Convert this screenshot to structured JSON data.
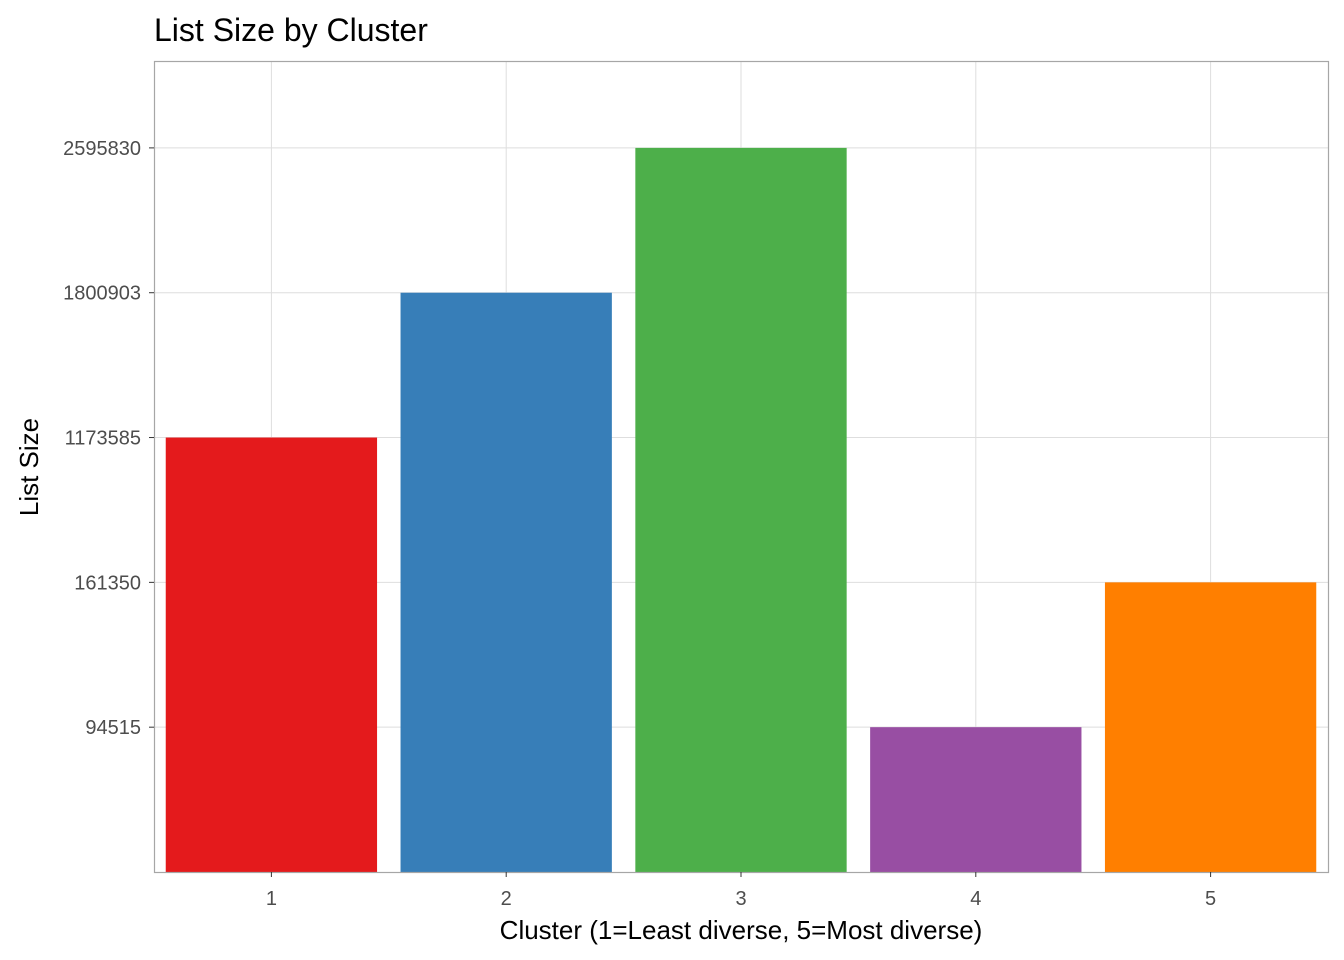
{
  "chart_data": {
    "type": "bar",
    "title": "List Size by Cluster",
    "xlabel": "Cluster (1=Least diverse, 5=Most diverse)",
    "ylabel": "List Size",
    "categories": [
      "1",
      "2",
      "3",
      "4",
      "5"
    ],
    "values": [
      1173585,
      1800903,
      2595830,
      94515,
      161350
    ],
    "colors": [
      "#e41a1c",
      "#377eb8",
      "#4daf4a",
      "#984ea3",
      "#ff7f00"
    ],
    "y_scale": "discrete (ticks are the observed values, evenly spaced in rank order)",
    "y_ticks": [
      "94515",
      "161350",
      "1173585",
      "1800903",
      "2595830"
    ],
    "grid": true,
    "legend": "none"
  }
}
